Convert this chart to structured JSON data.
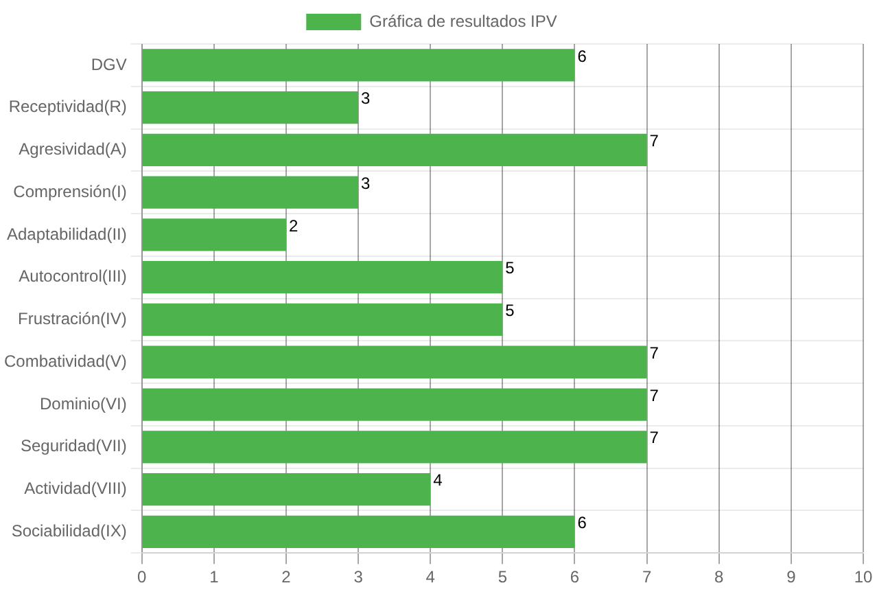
{
  "chart_data": {
    "type": "bar",
    "orientation": "horizontal",
    "categories": [
      "DGV",
      "Receptividad(R)",
      "Agresividad(A)",
      "Comprensión(I)",
      "Adaptabilidad(II)",
      "Autocontrol(III)",
      "Frustración(IV)",
      "Combatividad(V)",
      "Dominio(VI)",
      "Seguridad(VII)",
      "Actividad(VIII)",
      "Sociabilidad(IX)"
    ],
    "series": [
      {
        "name": "Gráfica de resultados IPV",
        "color": "#4db34d",
        "values": [
          6,
          3,
          7,
          3,
          2,
          5,
          5,
          7,
          7,
          7,
          4,
          6
        ]
      }
    ],
    "xlim": [
      0,
      10
    ],
    "xticks": [
      0,
      1,
      2,
      3,
      4,
      5,
      6,
      7,
      8,
      9,
      10
    ],
    "grid": true,
    "legend": "top",
    "data_labels": true
  }
}
